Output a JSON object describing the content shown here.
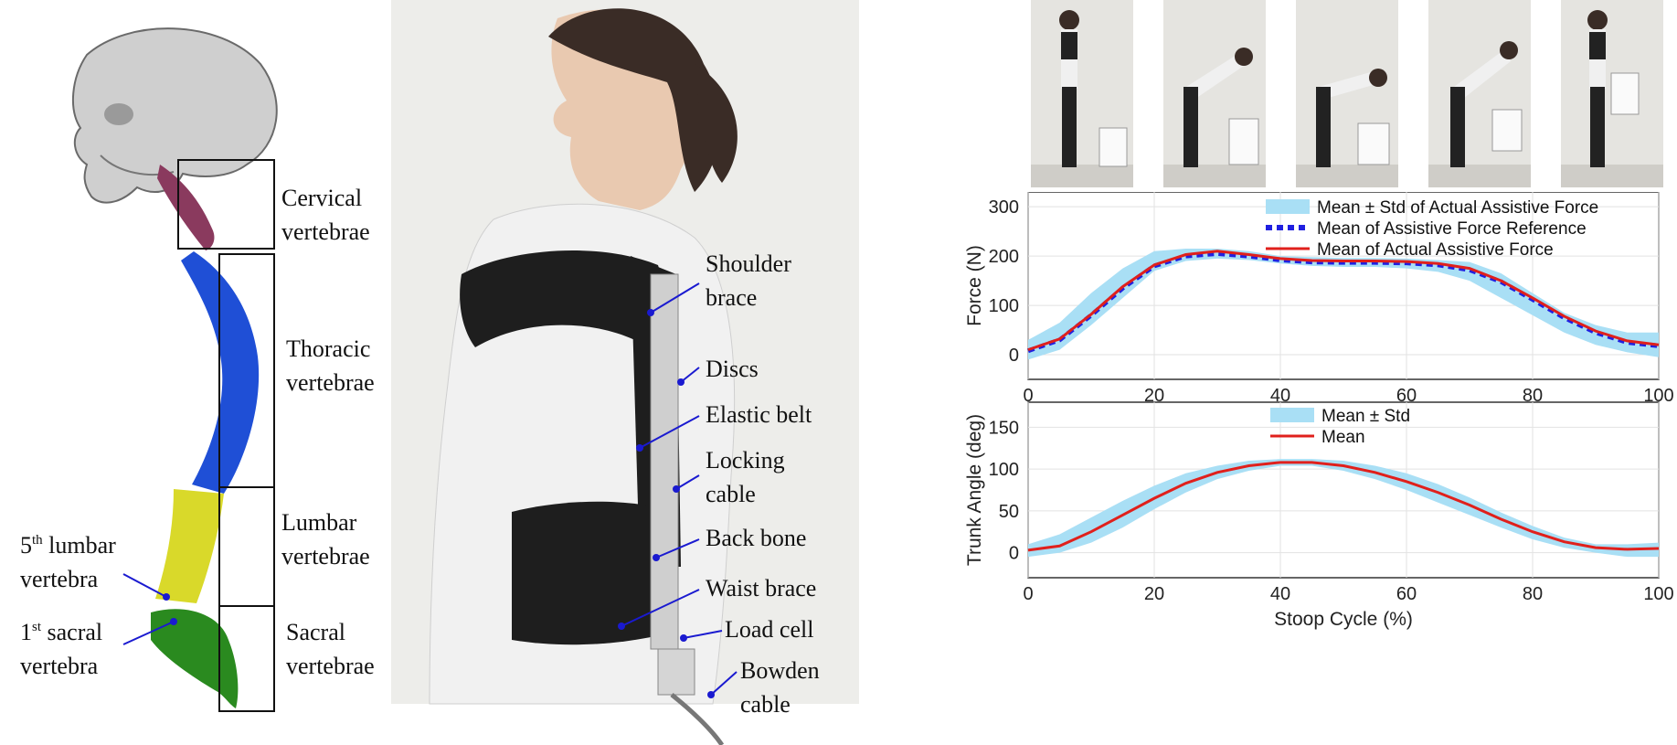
{
  "spine_labels": {
    "cervical": [
      "Cervical",
      "vertebrae"
    ],
    "thoracic": [
      "Thoracic",
      "vertebrae"
    ],
    "lumbar": [
      "Lumbar",
      "vertebrae"
    ],
    "sacral": [
      "Sacral",
      "vertebrae"
    ],
    "fifth_lumbar": {
      "num": "5",
      "sup": "th",
      "line1": " lumbar",
      "line2": "vertebra"
    },
    "first_sacral": {
      "num": "1",
      "sup": "st",
      "line1": " sacral",
      "line2": "vertebra"
    }
  },
  "device_labels": {
    "shoulder_brace": [
      "Shoulder",
      "brace"
    ],
    "discs": "Discs",
    "elastic_belt": "Elastic belt",
    "locking_cable": [
      "Locking",
      "cable"
    ],
    "back_bone": "Back bone",
    "waist_brace": "Waist brace",
    "load_cell": "Load cell",
    "bowden_cable": [
      "Bowden",
      "cable"
    ]
  },
  "colors": {
    "cervical": "#8a3a5e",
    "thoracic": "#1f4fd6",
    "lumbar": "#d9d92a",
    "sacral": "#2a8a1f",
    "pointer": "#1a1ad0",
    "band": "#a9dff5",
    "mean": "#e0201c",
    "reference": "#2020e0"
  },
  "chart_data": [
    {
      "type": "line",
      "xlabel": "",
      "ylabel": "Force (N)",
      "xlim": [
        0,
        100
      ],
      "ylim": [
        -50,
        330
      ],
      "xticks": [
        "0",
        "20",
        "40",
        "60",
        "80",
        "100"
      ],
      "yticks": [
        "0",
        "100",
        "200",
        "300"
      ],
      "grid": true,
      "legend": "top-right",
      "x": [
        0,
        5,
        10,
        15,
        20,
        25,
        30,
        35,
        40,
        45,
        50,
        55,
        60,
        65,
        70,
        75,
        80,
        85,
        90,
        95,
        100
      ],
      "series": [
        {
          "name": "Mean ± Std of Actual Assistive Force",
          "kind": "band",
          "lower": [
            -10,
            10,
            60,
            115,
            170,
            190,
            195,
            192,
            185,
            180,
            178,
            178,
            175,
            168,
            150,
            115,
            80,
            45,
            20,
            5,
            -5
          ],
          "upper": [
            30,
            65,
            125,
            175,
            210,
            215,
            215,
            210,
            200,
            198,
            196,
            196,
            195,
            192,
            188,
            165,
            125,
            85,
            60,
            45,
            45
          ]
        },
        {
          "name": "Mean of Assistive Force Reference",
          "kind": "dashed",
          "values": [
            8,
            30,
            80,
            135,
            180,
            200,
            205,
            200,
            192,
            188,
            187,
            187,
            186,
            182,
            172,
            148,
            112,
            75,
            45,
            25,
            18
          ]
        },
        {
          "name": "Mean of Actual Assistive Force",
          "kind": "solid",
          "values": [
            10,
            32,
            82,
            138,
            182,
            203,
            210,
            203,
            195,
            191,
            190,
            190,
            189,
            185,
            175,
            150,
            115,
            78,
            48,
            28,
            20
          ]
        }
      ]
    },
    {
      "type": "line",
      "xlabel": "Stoop Cycle (%)",
      "ylabel": "Trunk Angle (deg)",
      "xlim": [
        0,
        100
      ],
      "ylim": [
        -30,
        180
      ],
      "xticks": [
        "0",
        "20",
        "40",
        "60",
        "80",
        "100"
      ],
      "yticks": [
        "0",
        "50",
        "100",
        "150"
      ],
      "grid": true,
      "legend": "top-center",
      "x": [
        0,
        5,
        10,
        15,
        20,
        25,
        30,
        35,
        40,
        45,
        50,
        55,
        60,
        65,
        70,
        75,
        80,
        85,
        90,
        95,
        100
      ],
      "series": [
        {
          "name": "Mean ± Std",
          "kind": "band",
          "lower": [
            -5,
            0,
            12,
            30,
            52,
            72,
            88,
            98,
            104,
            104,
            98,
            88,
            75,
            60,
            45,
            30,
            16,
            6,
            0,
            -5,
            -5
          ],
          "upper": [
            10,
            22,
            42,
            62,
            80,
            95,
            104,
            110,
            112,
            112,
            110,
            104,
            95,
            82,
            66,
            48,
            32,
            18,
            10,
            10,
            12
          ]
        },
        {
          "name": "Mean",
          "kind": "solid",
          "values": [
            3,
            8,
            25,
            45,
            65,
            83,
            96,
            104,
            108,
            108,
            104,
            96,
            85,
            72,
            57,
            40,
            25,
            13,
            6,
            4,
            5
          ]
        }
      ]
    }
  ]
}
